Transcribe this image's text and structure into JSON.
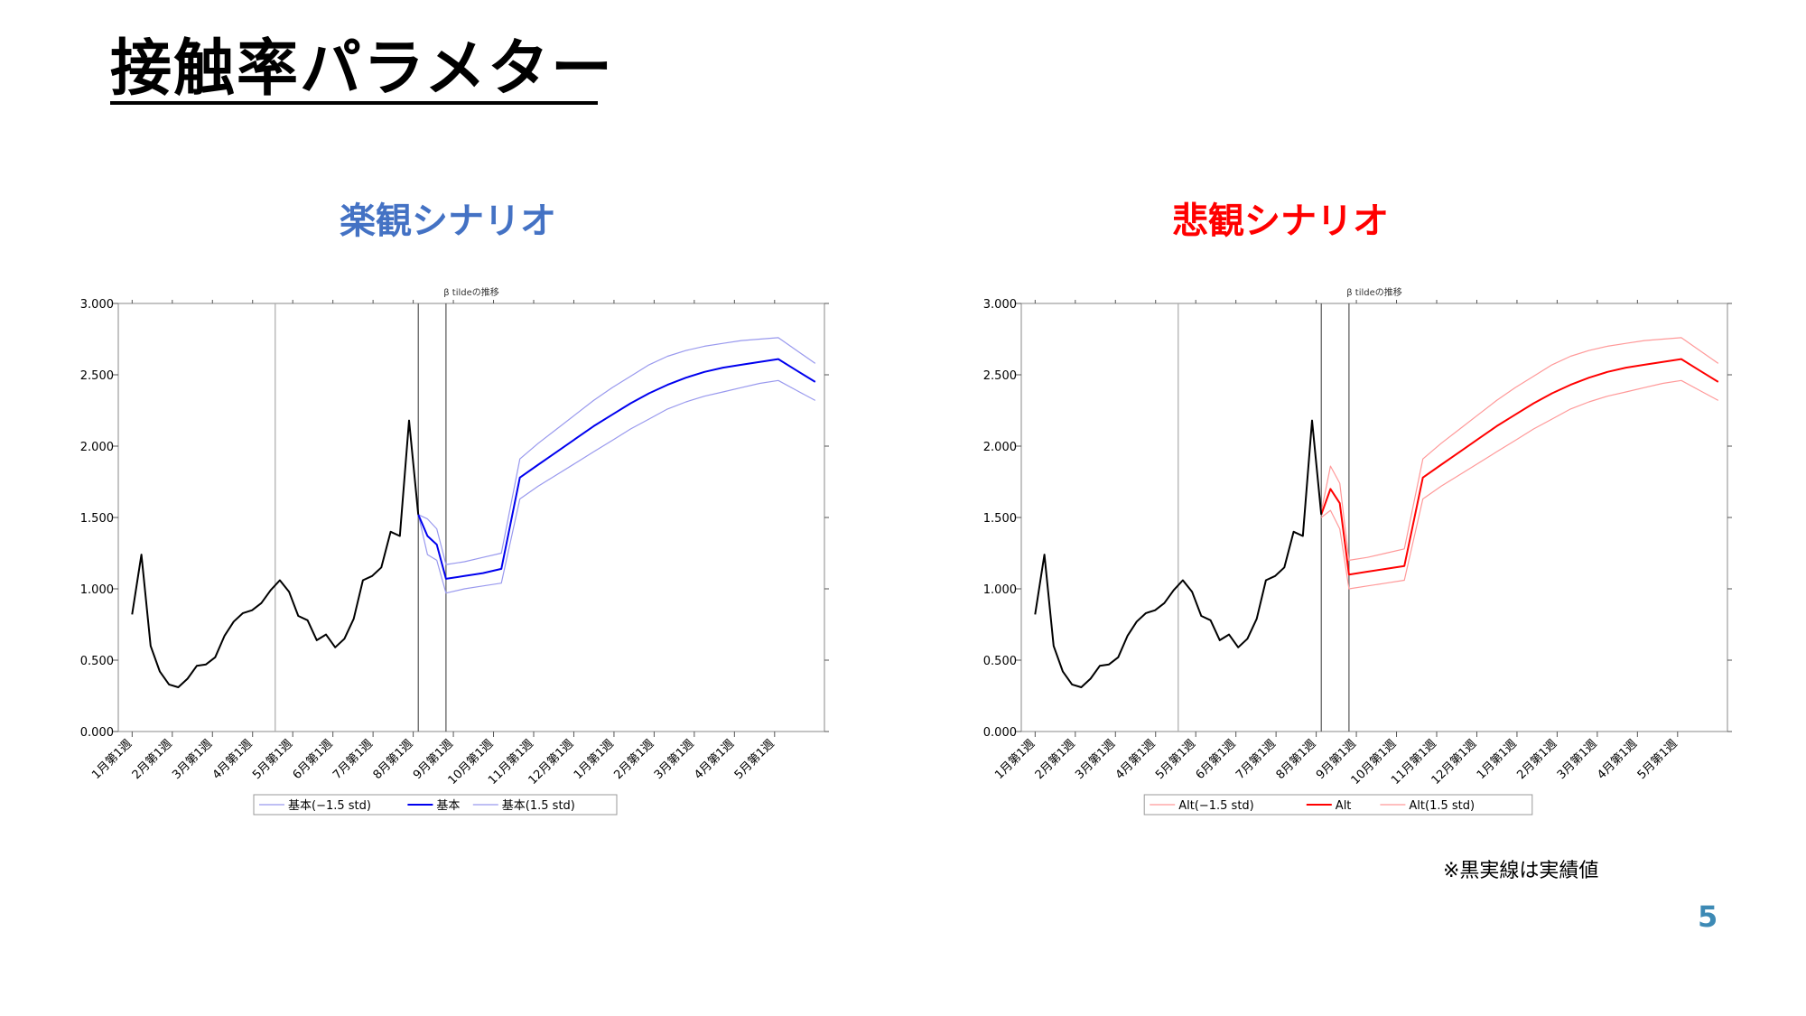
{
  "slide": {
    "title": "接触率パラメター",
    "footnote": "※黒実線は実績値",
    "page_number": "5"
  },
  "chart_data": [
    {
      "type": "line",
      "scenario_title": "楽観シナリオ",
      "title": "β tildeの推移",
      "ylim": [
        0,
        3
      ],
      "yticks": [
        "0.000",
        "0.500",
        "1.000",
        "1.500",
        "2.000",
        "2.500",
        "3.000"
      ],
      "x_tick_labels": [
        "1月第1週",
        "2月第1週",
        "3月第1週",
        "4月第1週",
        "5月第1週",
        "6月第1週",
        "7月第1週",
        "8月第1週",
        "9月第1週",
        "10月第1週",
        "11月第1週",
        "12月第1週",
        "1月第1週",
        "2月第1週",
        "3月第1週",
        "4月第1週",
        "5月第1週"
      ],
      "vertical_lines_week": [
        15.5,
        31,
        34
      ],
      "legend_position": "bottom",
      "grid": false,
      "colors": {
        "actual": "#000000",
        "scenario": "#0000ee",
        "band": "#9999ee"
      },
      "actual": {
        "x": [
          0,
          1,
          2,
          3,
          4,
          5,
          6,
          7,
          8,
          9,
          10,
          11,
          12,
          13,
          14,
          15,
          16,
          17,
          18,
          19,
          20,
          21,
          22,
          23,
          24,
          25,
          26,
          27,
          28,
          29,
          30,
          31
        ],
        "y": [
          0.82,
          1.24,
          0.6,
          0.42,
          0.33,
          0.31,
          0.37,
          0.46,
          0.47,
          0.52,
          0.67,
          0.77,
          0.83,
          0.85,
          0.9,
          0.99,
          1.06,
          0.98,
          0.81,
          0.78,
          0.64,
          0.68,
          0.59,
          0.65,
          0.79,
          1.06,
          1.09,
          1.15,
          1.4,
          1.37,
          2.18,
          1.52
        ]
      },
      "series": [
        {
          "name": "基本(−1.5 std)",
          "x": [
            31,
            32,
            33,
            34,
            36,
            38,
            40,
            42,
            44,
            46,
            48,
            50,
            52,
            54,
            56,
            58,
            60,
            62,
            64,
            66,
            68,
            70,
            72,
            74
          ],
          "y": [
            1.52,
            1.24,
            1.2,
            0.97,
            1.0,
            1.02,
            1.04,
            1.63,
            1.72,
            1.8,
            1.88,
            1.96,
            2.04,
            2.12,
            2.19,
            2.26,
            2.31,
            2.35,
            2.38,
            2.41,
            2.44,
            2.46,
            2.39,
            2.32
          ]
        },
        {
          "name": "基本",
          "x": [
            31,
            32,
            33,
            34,
            36,
            38,
            40,
            42,
            44,
            46,
            48,
            50,
            52,
            54,
            56,
            58,
            60,
            62,
            64,
            66,
            68,
            70,
            72,
            74
          ],
          "y": [
            1.52,
            1.37,
            1.31,
            1.07,
            1.09,
            1.11,
            1.14,
            1.78,
            1.87,
            1.96,
            2.05,
            2.14,
            2.22,
            2.3,
            2.37,
            2.43,
            2.48,
            2.52,
            2.55,
            2.57,
            2.59,
            2.61,
            2.53,
            2.45
          ]
        },
        {
          "name": "基本(1.5 std)",
          "x": [
            31,
            32,
            33,
            34,
            36,
            38,
            40,
            42,
            44,
            46,
            48,
            50,
            52,
            54,
            56,
            58,
            60,
            62,
            64,
            66,
            68,
            70,
            72,
            74
          ],
          "y": [
            1.52,
            1.49,
            1.42,
            1.17,
            1.19,
            1.22,
            1.25,
            1.91,
            2.02,
            2.12,
            2.22,
            2.32,
            2.41,
            2.49,
            2.57,
            2.63,
            2.67,
            2.7,
            2.72,
            2.74,
            2.75,
            2.76,
            2.67,
            2.58
          ]
        }
      ]
    },
    {
      "type": "line",
      "scenario_title": "悲観シナリオ",
      "title": "β tildeの推移",
      "ylim": [
        0,
        3
      ],
      "yticks": [
        "0.000",
        "0.500",
        "1.000",
        "1.500",
        "2.000",
        "2.500",
        "3.000"
      ],
      "x_tick_labels": [
        "1月第1週",
        "2月第1週",
        "3月第1週",
        "4月第1週",
        "5月第1週",
        "6月第1週",
        "7月第1週",
        "8月第1週",
        "9月第1週",
        "10月第1週",
        "11月第1週",
        "12月第1週",
        "1月第1週",
        "2月第1週",
        "3月第1週",
        "4月第1週",
        "5月第1週"
      ],
      "vertical_lines_week": [
        15.5,
        31,
        34
      ],
      "legend_position": "bottom",
      "grid": false,
      "colors": {
        "actual": "#000000",
        "scenario": "#ff0000",
        "band": "#ff9999"
      },
      "actual": {
        "x": [
          0,
          1,
          2,
          3,
          4,
          5,
          6,
          7,
          8,
          9,
          10,
          11,
          12,
          13,
          14,
          15,
          16,
          17,
          18,
          19,
          20,
          21,
          22,
          23,
          24,
          25,
          26,
          27,
          28,
          29,
          30,
          31
        ],
        "y": [
          0.82,
          1.24,
          0.6,
          0.42,
          0.33,
          0.31,
          0.37,
          0.46,
          0.47,
          0.52,
          0.67,
          0.77,
          0.83,
          0.85,
          0.9,
          0.99,
          1.06,
          0.98,
          0.81,
          0.78,
          0.64,
          0.68,
          0.59,
          0.65,
          0.79,
          1.06,
          1.09,
          1.15,
          1.4,
          1.37,
          2.18,
          1.52
        ]
      },
      "series": [
        {
          "name": "Alt(−1.5 std)",
          "x": [
            31,
            32,
            33,
            34,
            36,
            38,
            40,
            42,
            44,
            46,
            48,
            50,
            52,
            54,
            56,
            58,
            60,
            62,
            64,
            66,
            68,
            70,
            72,
            74
          ],
          "y": [
            1.5,
            1.55,
            1.42,
            1.0,
            1.02,
            1.04,
            1.06,
            1.63,
            1.72,
            1.8,
            1.88,
            1.96,
            2.04,
            2.12,
            2.19,
            2.26,
            2.31,
            2.35,
            2.38,
            2.41,
            2.44,
            2.46,
            2.39,
            2.32
          ]
        },
        {
          "name": "Alt",
          "x": [
            31,
            32,
            33,
            34,
            36,
            38,
            40,
            42,
            44,
            46,
            48,
            50,
            52,
            54,
            56,
            58,
            60,
            62,
            64,
            66,
            68,
            70,
            72,
            74
          ],
          "y": [
            1.52,
            1.7,
            1.6,
            1.1,
            1.12,
            1.14,
            1.16,
            1.78,
            1.87,
            1.96,
            2.05,
            2.14,
            2.22,
            2.3,
            2.37,
            2.43,
            2.48,
            2.52,
            2.55,
            2.57,
            2.59,
            2.61,
            2.53,
            2.45
          ]
        },
        {
          "name": "Alt(1.5 std)",
          "x": [
            31,
            32,
            33,
            34,
            36,
            38,
            40,
            42,
            44,
            46,
            48,
            50,
            52,
            54,
            56,
            58,
            60,
            62,
            64,
            66,
            68,
            70,
            72,
            74
          ],
          "y": [
            1.54,
            1.86,
            1.74,
            1.2,
            1.22,
            1.25,
            1.28,
            1.91,
            2.02,
            2.12,
            2.22,
            2.32,
            2.41,
            2.49,
            2.57,
            2.63,
            2.67,
            2.7,
            2.72,
            2.74,
            2.75,
            2.76,
            2.67,
            2.58
          ]
        }
      ]
    }
  ]
}
